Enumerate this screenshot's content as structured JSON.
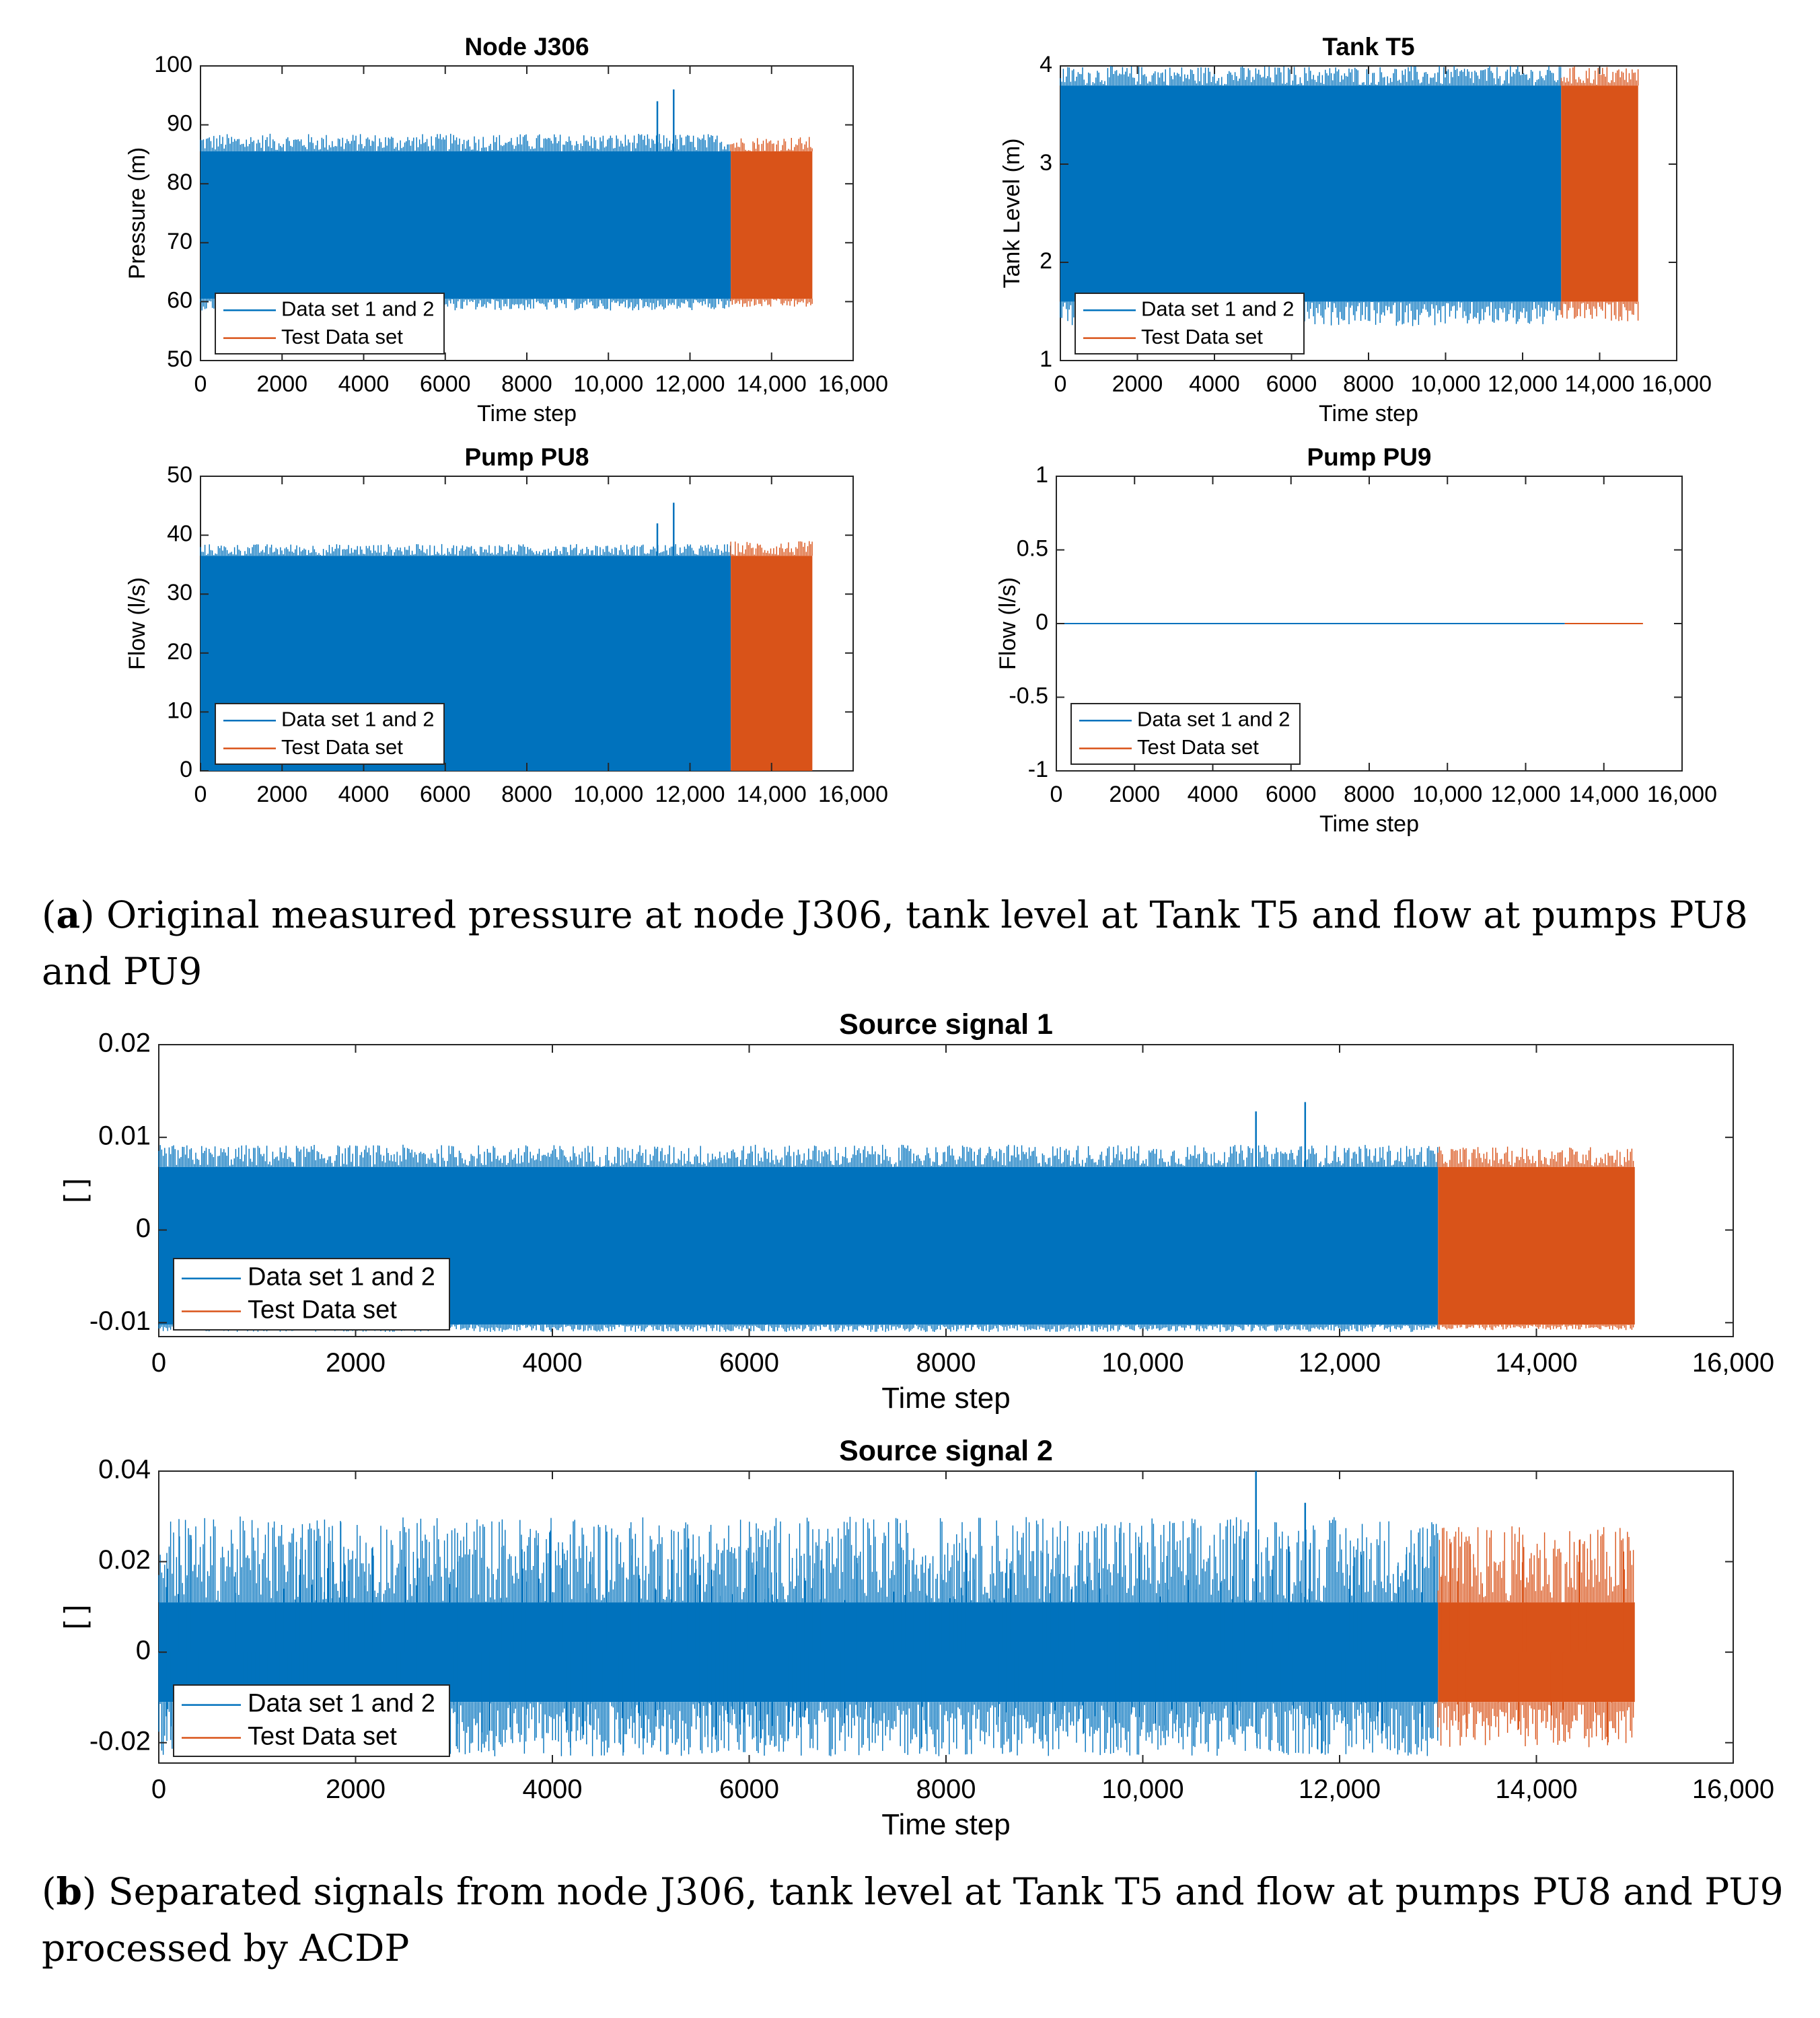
{
  "colors": {
    "train": "#0072BD",
    "test": "#D95319",
    "axis": "#000000",
    "bg": "#ffffff"
  },
  "captions": {
    "a": {
      "letter": "a",
      "text": "Original measured pressure at node J306, tank level at Tank T5 and flow at pumps PU8 and PU9"
    },
    "b": {
      "letter": "b",
      "text": "Separated signals from node J306, tank level at Tank T5 and flow at pumps PU8 and PU9 processed by ACDP"
    }
  },
  "chart_data": [
    {
      "id": "node-j306",
      "type": "line",
      "title": "Node J306",
      "xlabel": "Time step",
      "ylabel": "Pressure (m)",
      "xlim": [
        0,
        16000
      ],
      "ylim": [
        50,
        100
      ],
      "xticks": [
        0,
        2000,
        4000,
        6000,
        8000,
        10000,
        12000,
        14000,
        16000
      ],
      "xtick_labels": [
        "0",
        "2000",
        "4000",
        "6000",
        "8000",
        "10,000",
        "12,000",
        "14,000",
        "16,000"
      ],
      "yticks": [
        50,
        60,
        70,
        80,
        90,
        100
      ],
      "ytick_labels": [
        "50",
        "60",
        "70",
        "80",
        "90",
        "100"
      ],
      "legend": [
        "Data set 1 and 2",
        "Test Data set"
      ],
      "legend_position": "bottom-left",
      "series": [
        {
          "name": "Data set 1 and 2",
          "x_range": [
            0,
            13000
          ],
          "band_low": 60.5,
          "band_high": 85.5,
          "peak_low": 58.5,
          "peak_high": 88.5,
          "spikes": [
            {
              "x": 11200,
              "y": 94
            },
            {
              "x": 11600,
              "y": 96
            }
          ]
        },
        {
          "name": "Test Data set",
          "x_range": [
            13000,
            15000
          ],
          "band_low": 60.5,
          "band_high": 85.5,
          "peak_low": 59,
          "peak_high": 88,
          "spikes": []
        }
      ]
    },
    {
      "id": "tank-t5",
      "type": "line",
      "title": "Tank T5",
      "xlabel": "Time step",
      "ylabel": "Tank Level (m)",
      "xlim": [
        0,
        16000
      ],
      "ylim": [
        1,
        4
      ],
      "xticks": [
        0,
        2000,
        4000,
        6000,
        8000,
        10000,
        12000,
        14000,
        16000
      ],
      "xtick_labels": [
        "0",
        "2000",
        "4000",
        "6000",
        "8000",
        "10,000",
        "12,000",
        "14,000",
        "16,000"
      ],
      "yticks": [
        1,
        2,
        3,
        4
      ],
      "ytick_labels": [
        "1",
        "2",
        "3",
        "4"
      ],
      "legend": [
        "Data set 1 and 2",
        "Test Data set"
      ],
      "legend_position": "bottom-left",
      "series": [
        {
          "name": "Data set 1 and 2",
          "x_range": [
            0,
            13000
          ],
          "band_low": 1.6,
          "band_high": 3.8,
          "peak_low": 1.35,
          "peak_high": 4.0,
          "spikes": []
        },
        {
          "name": "Test Data set",
          "x_range": [
            13000,
            15000
          ],
          "band_low": 1.6,
          "band_high": 3.8,
          "peak_low": 1.4,
          "peak_high": 4.0,
          "spikes": []
        }
      ]
    },
    {
      "id": "pump-pu8",
      "type": "line",
      "title": "Pump PU8",
      "xlabel": "",
      "ylabel": "Flow (l/s)",
      "xlim": [
        0,
        16000
      ],
      "ylim": [
        0,
        50
      ],
      "xticks": [
        0,
        2000,
        4000,
        6000,
        8000,
        10000,
        12000,
        14000,
        16000
      ],
      "xtick_labels": [
        "0",
        "2000",
        "4000",
        "6000",
        "8000",
        "10,000",
        "12,000",
        "14,000",
        "16,000"
      ],
      "yticks": [
        0,
        10,
        20,
        30,
        40,
        50
      ],
      "ytick_labels": [
        "0",
        "10",
        "20",
        "30",
        "40",
        "50"
      ],
      "legend": [
        "Data set 1 and 2",
        "Test Data set"
      ],
      "legend_position": "bottom-left",
      "series": [
        {
          "name": "Data set 1 and 2",
          "x_range": [
            0,
            13000
          ],
          "band_low": 0,
          "band_high": 36.5,
          "peak_low": 0,
          "peak_high": 38.5,
          "spikes": [
            {
              "x": 11200,
              "y": 42
            },
            {
              "x": 11600,
              "y": 45.5
            }
          ]
        },
        {
          "name": "Test Data set",
          "x_range": [
            13000,
            15000
          ],
          "band_low": 0,
          "band_high": 36.5,
          "peak_low": 0,
          "peak_high": 39,
          "spikes": []
        }
      ]
    },
    {
      "id": "pump-pu9",
      "type": "line",
      "title": "Pump PU9",
      "xlabel": "Time step",
      "ylabel": "Flow (l/s)",
      "xlim": [
        0,
        16000
      ],
      "ylim": [
        -1,
        1
      ],
      "xticks": [
        0,
        2000,
        4000,
        6000,
        8000,
        10000,
        12000,
        14000,
        16000
      ],
      "xtick_labels": [
        "0",
        "2000",
        "4000",
        "6000",
        "8000",
        "10,000",
        "12,000",
        "14,000",
        "16,000"
      ],
      "yticks": [
        -1,
        -0.5,
        0,
        0.5,
        1
      ],
      "ytick_labels": [
        "-1",
        "-0.5",
        "0",
        "0.5",
        "1"
      ],
      "legend": [
        "Data set 1 and 2",
        "Test Data set"
      ],
      "legend_position": "bottom-left",
      "series": [
        {
          "name": "Data set 1 and 2",
          "x_range": [
            0,
            13000
          ],
          "constant": 0
        },
        {
          "name": "Test Data set",
          "x_range": [
            13000,
            15000
          ],
          "constant": 0
        }
      ]
    },
    {
      "id": "source-signal-1",
      "type": "line",
      "title": "Source signal 1",
      "xlabel": "Time step",
      "ylabel": "[ ]",
      "xlim": [
        0,
        16000
      ],
      "ylim": [
        -0.0115,
        0.02
      ],
      "xticks": [
        0,
        2000,
        4000,
        6000,
        8000,
        10000,
        12000,
        14000,
        16000
      ],
      "xtick_labels": [
        "0",
        "2000",
        "4000",
        "6000",
        "8000",
        "10,000",
        "12,000",
        "14,000",
        "16,000"
      ],
      "yticks": [
        -0.01,
        0,
        0.01,
        0.02
      ],
      "ytick_labels": [
        "-0.01",
        "0",
        "0.01",
        "0.02"
      ],
      "legend": [
        "Data set 1 and 2",
        "Test Data set"
      ],
      "legend_position": "bottom-left",
      "series": [
        {
          "name": "Data set 1 and 2",
          "x_range": [
            0,
            13000
          ],
          "band_low": -0.0102,
          "band_high": 0.0068,
          "peak_low": -0.011,
          "peak_high": 0.0092,
          "spikes": [
            {
              "x": 11150,
              "y": 0.0128
            },
            {
              "x": 11650,
              "y": 0.0138
            }
          ]
        },
        {
          "name": "Test Data set",
          "x_range": [
            13000,
            15000
          ],
          "band_low": -0.0102,
          "band_high": 0.0068,
          "peak_low": -0.0108,
          "peak_high": 0.009,
          "spikes": []
        }
      ]
    },
    {
      "id": "source-signal-2",
      "type": "line",
      "title": "Source signal 2",
      "xlabel": "Time step",
      "ylabel": "[ ]",
      "xlim": [
        0,
        16000
      ],
      "ylim": [
        -0.0245,
        0.04
      ],
      "xticks": [
        0,
        2000,
        4000,
        6000,
        8000,
        10000,
        12000,
        14000,
        16000
      ],
      "xtick_labels": [
        "0",
        "2000",
        "4000",
        "6000",
        "8000",
        "10,000",
        "12,000",
        "14,000",
        "16,000"
      ],
      "yticks": [
        -0.02,
        0,
        0.02,
        0.04
      ],
      "ytick_labels": [
        "-0.02",
        "0",
        "0.02",
        "0.04"
      ],
      "legend": [
        "Data set 1 and 2",
        "Test Data set"
      ],
      "legend_position": "bottom-left",
      "series": [
        {
          "name": "Data set 1 and 2",
          "x_range": [
            0,
            13000
          ],
          "band_low": -0.011,
          "band_high": 0.011,
          "peak_low": -0.023,
          "peak_high": 0.03,
          "spikes": [
            {
              "x": 11150,
              "y": 0.04
            },
            {
              "x": 11650,
              "y": 0.033
            }
          ]
        },
        {
          "name": "Test Data set",
          "x_range": [
            13000,
            15000
          ],
          "band_low": -0.011,
          "band_high": 0.011,
          "peak_low": -0.021,
          "peak_high": 0.028,
          "spikes": []
        }
      ]
    }
  ]
}
